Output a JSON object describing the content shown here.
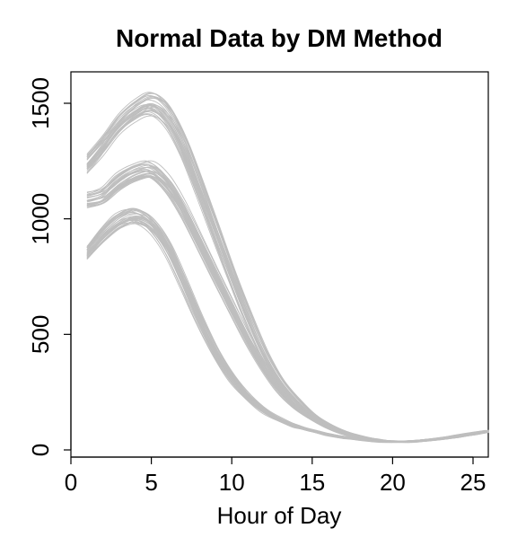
{
  "chart_data": {
    "type": "line",
    "title": "Normal Data by DM Method",
    "xlabel": "Hour of Day",
    "ylabel": "",
    "xlim": [
      1,
      26
    ],
    "ylim": [
      0,
      1600
    ],
    "xticks": [
      0,
      5,
      10,
      15,
      20,
      25
    ],
    "yticks": [
      0,
      500,
      1000,
      1500
    ],
    "line_color": "#bebebe",
    "groups": [
      {
        "curves_shown": 30,
        "x": [
          1,
          2,
          3,
          4,
          5,
          6,
          7,
          8,
          9,
          10,
          11,
          12,
          13,
          14,
          15,
          16,
          17,
          18,
          19,
          20,
          21,
          22,
          23,
          24,
          25,
          26
        ],
        "y": [
          1240,
          1320,
          1410,
          1470,
          1500,
          1450,
          1320,
          1140,
          950,
          760,
          580,
          420,
          300,
          215,
          150,
          105,
          75,
          55,
          42,
          36,
          36,
          41,
          49,
          58,
          69,
          80
        ]
      },
      {
        "curves_shown": 30,
        "x": [
          1,
          2,
          3,
          4,
          5,
          6,
          7,
          8,
          9,
          10,
          11,
          12,
          13,
          14,
          15,
          16,
          17,
          18,
          19,
          20,
          21,
          22,
          23,
          24,
          25,
          26
        ],
        "y": [
          1080,
          1100,
          1160,
          1200,
          1210,
          1150,
          1040,
          900,
          760,
          620,
          480,
          360,
          260,
          190,
          140,
          100,
          73,
          55,
          43,
          37,
          37,
          42,
          50,
          59,
          70,
          81
        ]
      },
      {
        "curves_shown": 30,
        "x": [
          1,
          2,
          3,
          4,
          5,
          6,
          7,
          8,
          9,
          10,
          11,
          12,
          13,
          14,
          15,
          16,
          17,
          18,
          19,
          20,
          21,
          22,
          23,
          24,
          25,
          26
        ],
        "y": [
          850,
          930,
          990,
          1010,
          970,
          870,
          720,
          560,
          420,
          310,
          230,
          170,
          130,
          102,
          82,
          66,
          54,
          45,
          38,
          35,
          36,
          41,
          49,
          58,
          69,
          80
        ]
      }
    ]
  }
}
